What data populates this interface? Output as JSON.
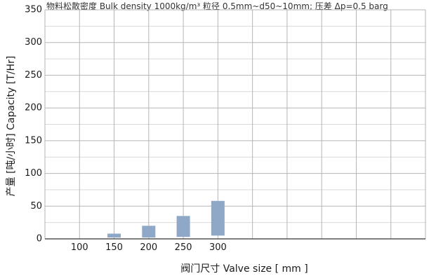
{
  "chart_data": {
    "type": "bar",
    "title": "",
    "subtitle": "物料松散密度 Bulk density 1000kg/m³ 粒径 0.5mm~d50~10mm; 压差 Δp=0.5 barg",
    "xlabel": "阀门尺寸 Valve size [ mm ]",
    "ylabel": "产量 [吨/小时]   Capacity [T/Hr]",
    "ylim": [
      0,
      350
    ],
    "y_ticks": [
      "0",
      "50",
      "100",
      "150",
      "200",
      "250",
      "300",
      "350"
    ],
    "x_tick_labels": [
      "100",
      "150",
      "200",
      "250",
      "300"
    ],
    "categories": [
      "100",
      "150",
      "200",
      "250",
      "300"
    ],
    "bars": [
      {
        "category": "150",
        "low": 2,
        "high": 8
      },
      {
        "category": "200",
        "low": 2,
        "high": 20
      },
      {
        "category": "250",
        "low": 3,
        "high": 35
      },
      {
        "category": "300",
        "low": 5,
        "high": 58
      }
    ],
    "grid": true,
    "bar_color": "#8fa8c8"
  }
}
